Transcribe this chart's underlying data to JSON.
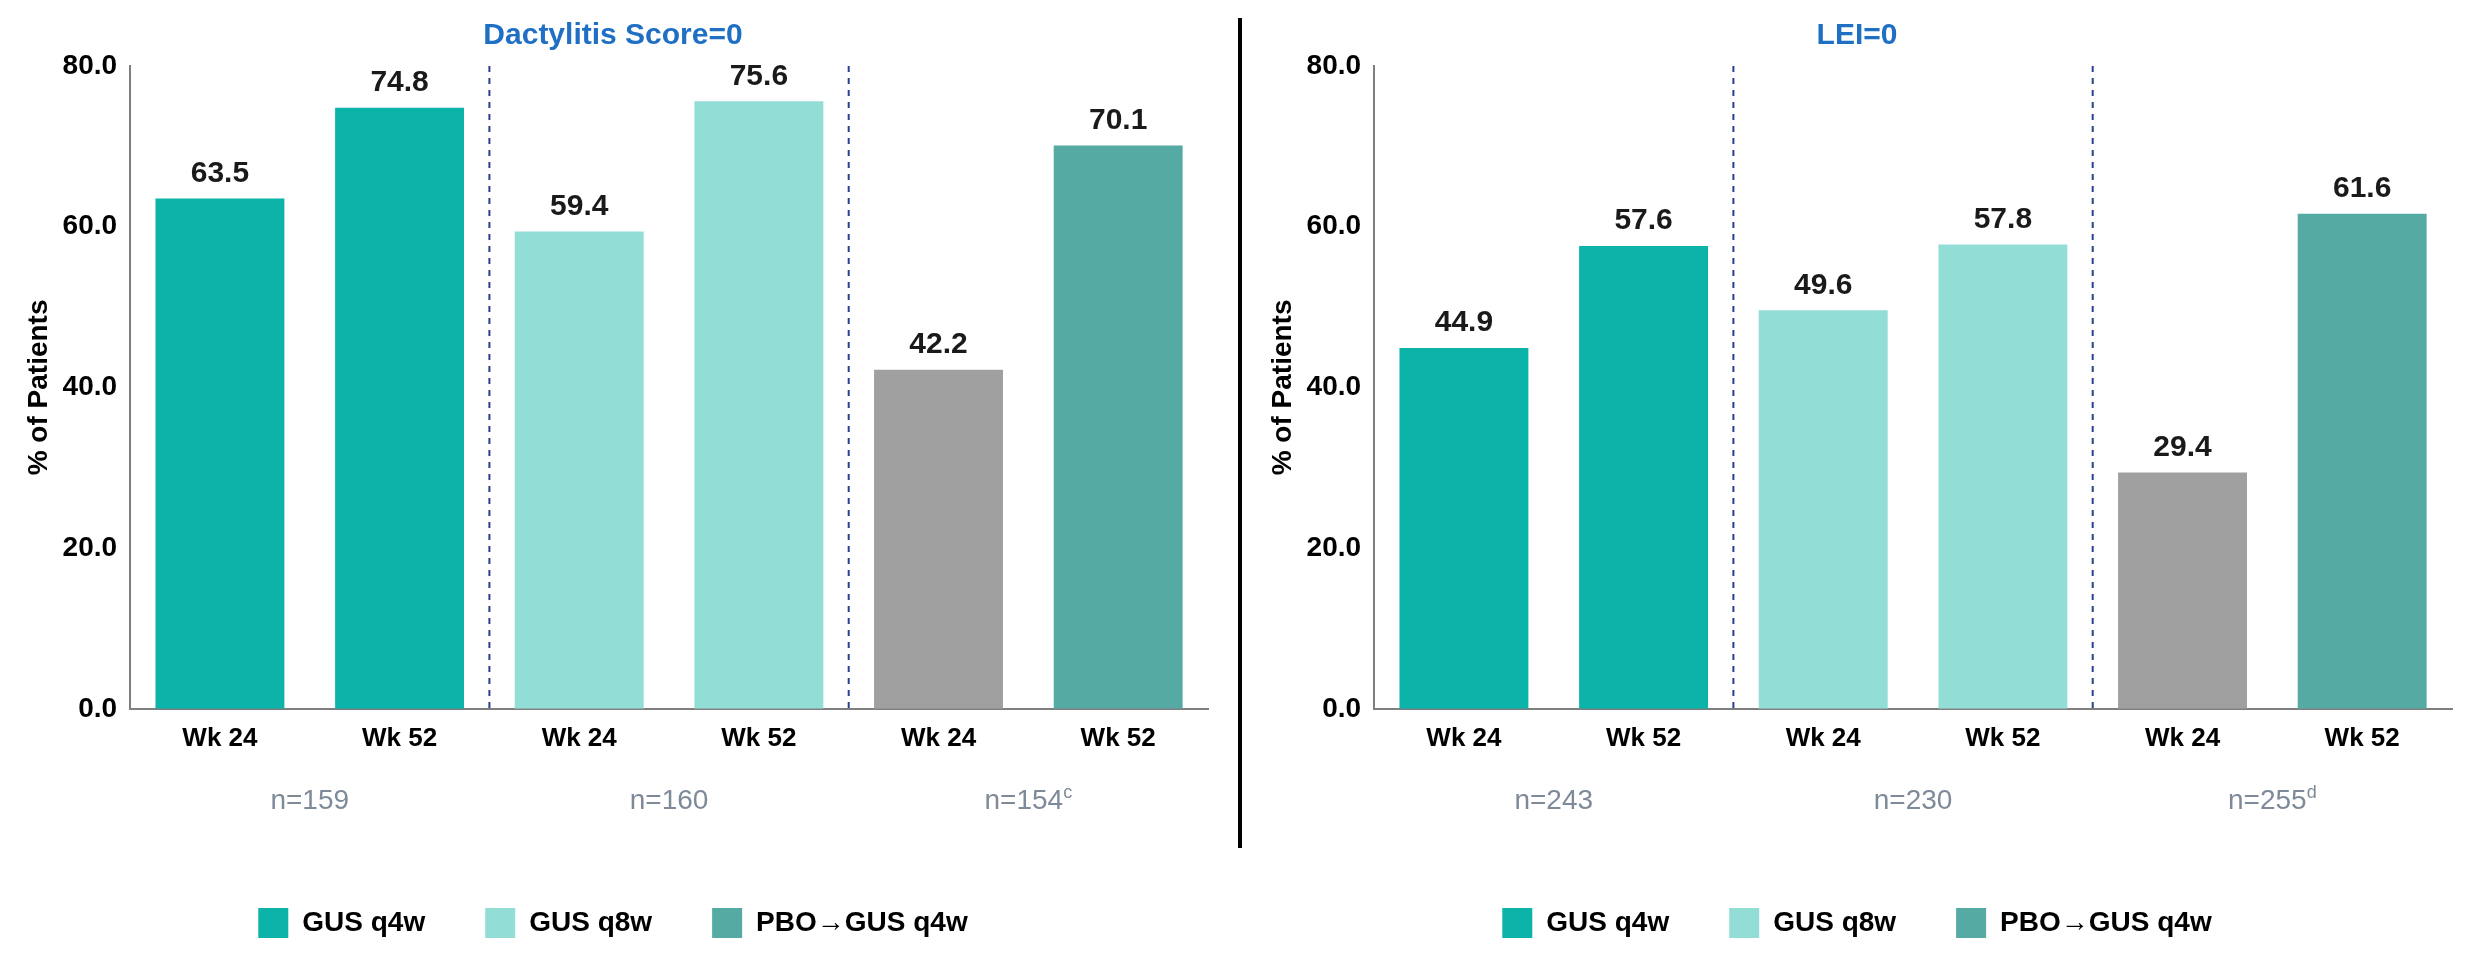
{
  "chart_data": [
    {
      "type": "bar",
      "title": "Dactylitis Score=0",
      "ylabel": "% of Patients",
      "categories": [
        "Wk 24",
        "Wk 52",
        "Wk 24",
        "Wk 52",
        "Wk 24",
        "Wk 52"
      ],
      "series": [
        {
          "name": "GUS q4w",
          "color": "#0bb3a8",
          "values": [
            63.5,
            74.8,
            null,
            null,
            null,
            null
          ]
        },
        {
          "name": "GUS q8w",
          "color": "#93ddd7",
          "values": [
            null,
            null,
            59.4,
            75.6,
            null,
            null
          ]
        },
        {
          "name": "PBO→GUS q4w",
          "color": "#56aaa4",
          "values": [
            null,
            null,
            null,
            null,
            null,
            70.1
          ]
        },
        {
          "color": "#a0a0a0",
          "values": [
            null,
            null,
            null,
            null,
            42.2,
            null
          ]
        }
      ],
      "ylim": [
        0,
        80
      ],
      "yticks": [
        {
          "value": 0,
          "label": "0.0"
        },
        {
          "value": 20,
          "label": "20.0"
        },
        {
          "value": 40,
          "label": "40.0"
        },
        {
          "value": 60,
          "label": "60.0"
        },
        {
          "value": 80,
          "label": "80.0"
        }
      ],
      "annotations": [
        "n=159",
        "n=160",
        "n=154$^{c}$"
      ],
      "data_labels": true,
      "grid": false,
      "legend": "bottom"
    },
    {
      "type": "bar",
      "title": "LEI=0",
      "ylabel": "% of Patients",
      "categories": [
        "Wk 24",
        "Wk 52",
        "Wk 24",
        "Wk 52",
        "Wk 24",
        "Wk 52"
      ],
      "series": [
        {
          "name": "GUS q4w",
          "color": "#0bb3a8",
          "values": [
            44.9,
            57.6,
            null,
            null,
            null,
            null
          ]
        },
        {
          "name": "GUS q8w",
          "color": "#93ddd7",
          "values": [
            null,
            null,
            49.6,
            57.8,
            null,
            null
          ]
        },
        {
          "name": "PBO→GUS q4w",
          "color": "#56aaa4",
          "values": [
            null,
            null,
            null,
            null,
            null,
            61.6
          ]
        },
        {
          "color": "#a0a0a0",
          "values": [
            null,
            null,
            null,
            null,
            29.4,
            null
          ]
        }
      ],
      "ylim": [
        0,
        80
      ],
      "yticks": [
        {
          "value": 0,
          "label": "0.0"
        },
        {
          "value": 20,
          "label": "20.0"
        },
        {
          "value": 40,
          "label": "40.0"
        },
        {
          "value": 60,
          "label": "60.0"
        },
        {
          "value": 80,
          "label": "80.0"
        }
      ],
      "annotations": [
        "n=243",
        "n=230",
        "n=255$^{d}$"
      ],
      "data_labels": true,
      "grid": false,
      "legend": "bottom"
    }
  ]
}
